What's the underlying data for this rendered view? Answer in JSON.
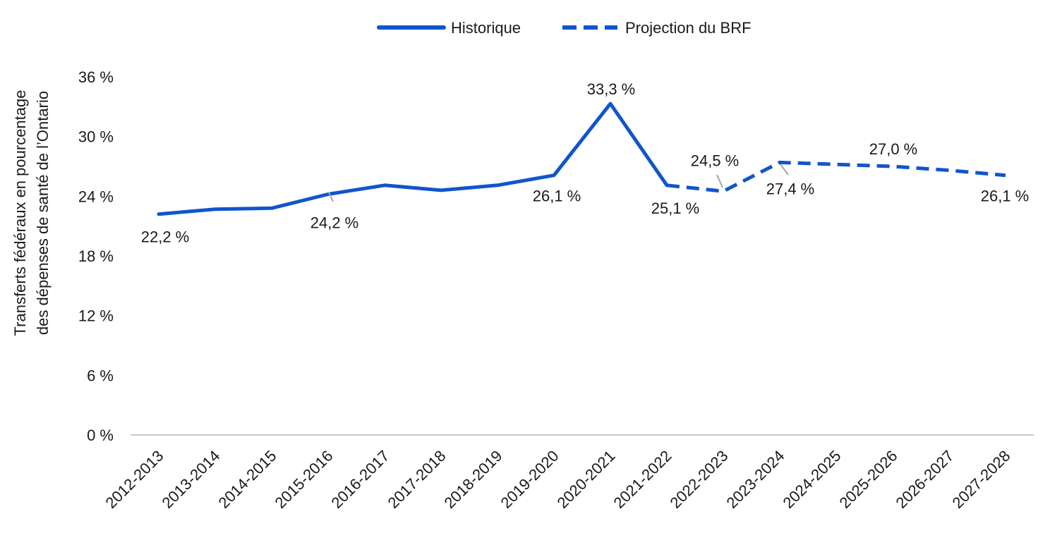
{
  "chart_data": {
    "type": "line",
    "title": "",
    "xlabel": "",
    "ylabel": "Transferts fédéraux en pourcentage des dépenses de santé de l'Ontario",
    "ylabel_lines": [
      "Transferts fédéraux en pourcentage",
      "des dépenses de santé de l’Ontario"
    ],
    "ylim": [
      0,
      36
    ],
    "yticks": [
      0,
      6,
      12,
      18,
      24,
      30,
      36
    ],
    "ytick_labels": [
      "0 %",
      "6 %",
      "12 %",
      "18 %",
      "24 %",
      "30 %",
      "36 %"
    ],
    "grid": false,
    "legend_position": "top-center",
    "categories": [
      "2012-2013",
      "2013-2014",
      "2014-2015",
      "2015-2016",
      "2016-2017",
      "2017-2018",
      "2018-2019",
      "2019-2020",
      "2020-2021",
      "2021-2022",
      "2022-2023",
      "2023-2024",
      "2024-2025",
      "2025-2026",
      "2026-2027",
      "2027-2028"
    ],
    "series": [
      {
        "name": "Historique",
        "style": "solid",
        "color": "#1155cc",
        "values": [
          22.2,
          22.7,
          22.8,
          24.2,
          25.1,
          24.6,
          25.1,
          26.1,
          33.3,
          25.1,
          null,
          null,
          null,
          null,
          null,
          null
        ]
      },
      {
        "name": "Projection du BRF",
        "style": "dashed",
        "color": "#1155cc",
        "values": [
          null,
          null,
          null,
          null,
          null,
          null,
          null,
          null,
          null,
          25.1,
          24.5,
          27.4,
          27.2,
          27.0,
          26.6,
          26.1
        ]
      }
    ],
    "data_labels": [
      {
        "index": 0,
        "text": "22,2 %"
      },
      {
        "index": 3,
        "text": "24,2 %"
      },
      {
        "index": 7,
        "text": "26,1 %"
      },
      {
        "index": 8,
        "text": "33,3 %"
      },
      {
        "index": 9,
        "text": "25,1 %"
      },
      {
        "index": 10,
        "text": "24,5 %"
      },
      {
        "index": 11,
        "text": "27,4 %"
      },
      {
        "index": 13,
        "text": "27,0 %"
      },
      {
        "index": 15,
        "text": "26,1 %"
      }
    ]
  },
  "colors": {
    "series": "#1155cc",
    "axis": "#c8c8c8",
    "leader": "#a6a6a6",
    "text": "#1a1a1a"
  }
}
